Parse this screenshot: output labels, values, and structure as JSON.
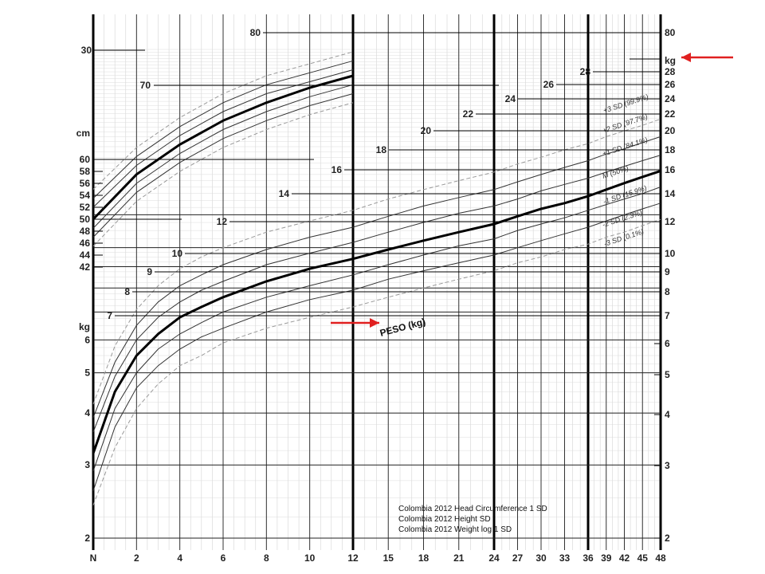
{
  "chart_data": {
    "type": "line",
    "x_ticks": [
      {
        "v": 0,
        "label": "N"
      },
      {
        "v": 2,
        "label": "2"
      },
      {
        "v": 4,
        "label": "4"
      },
      {
        "v": 6,
        "label": "6"
      },
      {
        "v": 8,
        "label": "8"
      },
      {
        "v": 10,
        "label": "10"
      },
      {
        "v": 12,
        "label": "12"
      },
      {
        "v": 15,
        "label": "15"
      },
      {
        "v": 18,
        "label": "18"
      },
      {
        "v": 21,
        "label": "21"
      },
      {
        "v": 24,
        "label": "24"
      },
      {
        "v": 27,
        "label": "27"
      },
      {
        "v": 30,
        "label": "30"
      },
      {
        "v": 33,
        "label": "33"
      },
      {
        "v": 36,
        "label": "36"
      },
      {
        "v": 39,
        "label": "39"
      },
      {
        "v": 42,
        "label": "42"
      },
      {
        "v": 45,
        "label": "45"
      },
      {
        "v": 48,
        "label": "48"
      }
    ],
    "major_x_lines": [
      12,
      24,
      36
    ],
    "left_length_labels": [
      "cm",
      "60",
      "58",
      "56",
      "54",
      "52",
      "50",
      "48",
      "46",
      "44",
      "42"
    ],
    "left_weight_labels": [
      "kg",
      "6",
      "5",
      "4",
      "3",
      "2"
    ],
    "right_labels": [
      "kg",
      "80",
      "28",
      "26",
      "24",
      "22",
      "20",
      "18",
      "16",
      "14",
      "12",
      "10",
      "9",
      "8",
      "7",
      "6",
      "5",
      "4",
      "3",
      "2"
    ],
    "inner_weight_labels": [
      "80",
      "70",
      "30",
      "28",
      "26",
      "24",
      "22",
      "20",
      "18",
      "16",
      "14",
      "12",
      "10",
      "9",
      "8",
      "7"
    ],
    "sd_labels": [
      "+3 SD (99.9%)",
      "+2 SD (97.7%)",
      "+1 SD (84.1%)",
      "M (50%)",
      "-1 SD (15.9%)",
      "-2 SD (2.3%)",
      "-3 SD (0.1%)"
    ],
    "peso_label": "PESO (kg)",
    "annotations": [
      "Colombia 2012 Head Circumference 1 SD",
      "Colombia 2012 Height SD",
      "Colombia 2012 Weight log 1 SD"
    ],
    "arrow_color": "#e02020",
    "series": [
      {
        "kind": "length",
        "role": "+3SD",
        "x": [
          0,
          2,
          4,
          6,
          8,
          10,
          12
        ],
        "y": [
          55,
          62,
          67,
          71,
          74,
          76,
          78
        ]
      },
      {
        "kind": "length",
        "role": "+2SD",
        "x": [
          0,
          2,
          4,
          6,
          8,
          10,
          12
        ],
        "y": [
          53.5,
          60.5,
          65.5,
          69.5,
          72.5,
          74.5,
          76.5
        ]
      },
      {
        "kind": "length",
        "role": "+1SD",
        "x": [
          0,
          2,
          4,
          6,
          8,
          10,
          12
        ],
        "y": [
          52,
          59,
          64,
          68,
          71,
          73,
          75
        ]
      },
      {
        "kind": "length",
        "role": "M",
        "x": [
          0,
          2,
          4,
          6,
          8,
          10,
          12
        ],
        "y": [
          50,
          57.5,
          62.5,
          66.5,
          69.5,
          72,
          74
        ]
      },
      {
        "kind": "length",
        "role": "-1SD",
        "x": [
          0,
          2,
          4,
          6,
          8,
          10,
          12
        ],
        "y": [
          48.5,
          56,
          61,
          65,
          68,
          70.5,
          72.5
        ]
      },
      {
        "kind": "length",
        "role": "-2SD",
        "x": [
          0,
          2,
          4,
          6,
          8,
          10,
          12
        ],
        "y": [
          47,
          54.5,
          59.5,
          63.5,
          66.5,
          69,
          71
        ]
      },
      {
        "kind": "length",
        "role": "-3SD",
        "x": [
          0,
          2,
          4,
          6,
          8,
          10,
          12
        ],
        "y": [
          45.5,
          53,
          58,
          62,
          65,
          67.5,
          69.5
        ]
      },
      {
        "kind": "weight",
        "role": "+3SD",
        "x": [
          0,
          1,
          2,
          3,
          4,
          5,
          6,
          8,
          10,
          12,
          15,
          18,
          21,
          24,
          27,
          30,
          33,
          36,
          39,
          42,
          45,
          48
        ],
        "y": [
          4.2,
          5.8,
          7.1,
          8.1,
          8.9,
          9.5,
          10,
          10.9,
          11.6,
          12.3,
          13.1,
          13.8,
          14.5,
          15.2,
          15.9,
          16.5,
          17.2,
          17.8,
          18.5,
          19.1,
          19.7,
          20.4
        ]
      },
      {
        "kind": "weight",
        "role": "+2SD",
        "x": [
          0,
          1,
          2,
          3,
          4,
          5,
          6,
          8,
          10,
          12,
          15,
          18,
          21,
          24,
          27,
          30,
          33,
          36,
          39,
          42,
          45,
          48
        ],
        "y": [
          3.9,
          5.3,
          6.5,
          7.4,
          8.1,
          8.6,
          9.1,
          9.9,
          10.6,
          11.2,
          11.9,
          12.6,
          13.2,
          13.8,
          14.4,
          15,
          15.6,
          16.2,
          16.8,
          17.3,
          17.9,
          18.5
        ]
      },
      {
        "kind": "weight",
        "role": "+1SD",
        "x": [
          0,
          1,
          2,
          3,
          4,
          5,
          6,
          8,
          10,
          12,
          15,
          18,
          21,
          24,
          27,
          30,
          33,
          36,
          39,
          42,
          45,
          48
        ],
        "y": [
          3.6,
          4.9,
          6,
          6.8,
          7.4,
          7.9,
          8.3,
          9.1,
          9.7,
          10.3,
          10.9,
          11.5,
          12.1,
          12.6,
          13.1,
          13.7,
          14.2,
          14.7,
          15.2,
          15.7,
          16.2,
          16.7
        ]
      },
      {
        "kind": "weight",
        "role": "M",
        "x": [
          0,
          1,
          2,
          3,
          4,
          5,
          6,
          8,
          10,
          12,
          15,
          18,
          21,
          24,
          27,
          30,
          33,
          36,
          39,
          42,
          45,
          48
        ],
        "y": [
          3.2,
          4.5,
          5.5,
          6.2,
          6.8,
          7.2,
          7.6,
          8.3,
          8.9,
          9.4,
          9.9,
          10.4,
          10.9,
          11.4,
          11.9,
          12.4,
          12.8,
          13.3,
          13.8,
          14.3,
          14.8,
          15.3
        ]
      },
      {
        "kind": "weight",
        "role": "-1SD",
        "x": [
          0,
          1,
          2,
          3,
          4,
          5,
          6,
          8,
          10,
          12,
          15,
          18,
          21,
          24,
          27,
          30,
          33,
          36,
          39,
          42,
          45,
          48
        ],
        "y": [
          2.9,
          4.1,
          5,
          5.7,
          6.2,
          6.6,
          7,
          7.6,
          8.1,
          8.6,
          9.1,
          9.6,
          10.1,
          10.5,
          11,
          11.4,
          11.8,
          12.3,
          12.7,
          13.1,
          13.5,
          14
        ]
      },
      {
        "kind": "weight",
        "role": "-2SD",
        "x": [
          0,
          1,
          2,
          3,
          4,
          5,
          6,
          8,
          10,
          12,
          15,
          18,
          21,
          24,
          27,
          30,
          33,
          36,
          39,
          42,
          45,
          48
        ],
        "y": [
          2.6,
          3.7,
          4.6,
          5.2,
          5.7,
          6.1,
          6.4,
          7,
          7.5,
          7.9,
          8.4,
          8.8,
          9.2,
          9.6,
          10,
          10.4,
          10.8,
          11.2,
          11.6,
          12,
          12.4,
          12.8
        ]
      },
      {
        "kind": "weight",
        "role": "-3SD",
        "x": [
          0,
          1,
          2,
          3,
          4,
          5,
          6,
          8,
          10,
          12,
          15,
          18,
          21,
          24,
          27,
          30,
          33,
          36,
          39,
          42,
          45,
          48
        ],
        "y": [
          2.4,
          3.3,
          4.1,
          4.7,
          5.2,
          5.5,
          5.9,
          6.4,
          6.8,
          7.2,
          7.6,
          8,
          8.4,
          8.8,
          9.2,
          9.5,
          9.9,
          10.2,
          10.6,
          10.9,
          11.3,
          11.7
        ]
      }
    ]
  }
}
